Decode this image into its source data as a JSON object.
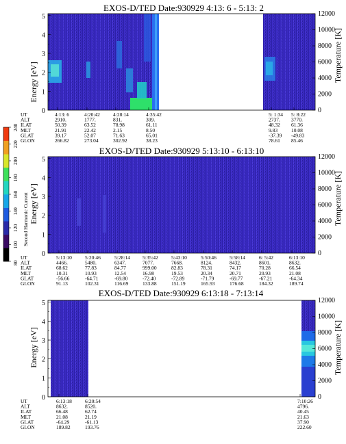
{
  "figure": {
    "colorbar": {
      "label": "Second Harmonic Current",
      "ticks": [
        "80",
        "100",
        "120",
        "140",
        "160",
        "180",
        "200",
        "220",
        "240"
      ],
      "colors": [
        "#000000",
        "#3a0a63",
        "#2a2aa8",
        "#1e5be0",
        "#17a6e8",
        "#22d6c0",
        "#3ee05a",
        "#d8e62a",
        "#f0a020",
        "#f03a10"
      ]
    },
    "row_labels": [
      "UT",
      "ALT",
      "ILAT",
      "MLT",
      "GLAT",
      "GLON"
    ],
    "panels": [
      {
        "title": "EXOS-D/TED   Date:930929  4:13: 6 - 5:13: 2",
        "left_axis": {
          "label": "Energy [eV]",
          "ticks": [
            "0",
            "1",
            "2",
            "3",
            "4",
            "5"
          ]
        },
        "right_axis": {
          "label": "Temperature [K]",
          "ticks": [
            "0",
            "2000",
            "4000",
            "6000",
            "8000",
            "10000",
            "12000"
          ]
        },
        "table": [
          [
            "4:13: 6",
            "2910.",
            "50.39",
            "21.91",
            "39.17",
            "266.82"
          ],
          [
            "4:20:42",
            "1777.",
            "63.52",
            "22.42",
            "52.07",
            "273.04"
          ],
          [
            "4:28:14",
            "831.",
            "78.98",
            "2.15",
            "71.63",
            "302.92"
          ],
          [
            "4:35:42",
            "309.",
            "61.11",
            "8.50",
            "65.01",
            "38.23"
          ],
          [
            "5: 1:34",
            "2737.",
            "48.32",
            "9.83",
            "-37.39",
            "78.61"
          ],
          [
            "5: 8:22",
            "3770.",
            "61.36",
            "10.08",
            "-49.83",
            "85.46"
          ]
        ]
      },
      {
        "title": "EXOS-D/TED   Date:930929  5:13:10 - 6:13:10",
        "left_axis": {
          "label": "Energy [eV]",
          "ticks": [
            "0",
            "1",
            "2",
            "3",
            "4",
            "5"
          ]
        },
        "right_axis": {
          "label": "Temperature [K]",
          "ticks": [
            "0",
            "2000",
            "4000",
            "6000",
            "8000",
            "10000",
            "12000"
          ]
        },
        "table": [
          [
            "5:13:10",
            "4466.",
            "68.62",
            "10.31",
            "-56.66",
            "91.13"
          ],
          [
            "5:20:46",
            "5480.",
            "77.83",
            "10.93",
            "-64.71",
            "102.31"
          ],
          [
            "5:28:14",
            "6347.",
            "84.77",
            "12.54",
            "-69.80",
            "116.69"
          ],
          [
            "5:35:42",
            "7077.",
            "999.00",
            "16.98",
            "-72.40",
            "133.88"
          ],
          [
            "5:43:10",
            "7668.",
            "82.83",
            "19.53",
            "-72.89",
            "151.19"
          ],
          [
            "5:50:46",
            "8124.",
            "78.31",
            "20.34",
            "-71.79",
            "165.93"
          ],
          [
            "5:58:14",
            "8432.",
            "74.17",
            "20.71",
            "-69.77",
            "176.68"
          ],
          [
            "6: 5:42",
            "8601.",
            "70.28",
            "20.93",
            "-67.21",
            "184.32"
          ],
          [
            "6:13:10",
            "8632.",
            "66.54",
            "21.08",
            "-64.34",
            "189.74"
          ]
        ]
      },
      {
        "title": "EXOS-D/TED   Date:930929  6:13:18 - 7:13:14",
        "left_axis": {
          "label": "Energy [eV]",
          "ticks": [
            "0",
            "1",
            "2",
            "3",
            "4",
            "5"
          ]
        },
        "right_axis": {
          "label": "Temperature [K]",
          "ticks": [
            "0",
            "2000",
            "4000",
            "6000",
            "8000",
            "10000",
            "12000"
          ]
        },
        "table": [
          [
            "6:13:18",
            "8632.",
            "66.48",
            "21.08",
            "-64.29",
            "189.82"
          ],
          [
            "6:20:54",
            "8520.",
            "62.74",
            "21.19",
            "-61.13",
            "193.76"
          ],
          [
            "7:10:26",
            "4796.",
            "40.45",
            "21.63",
            "37.90",
            "222.60"
          ]
        ]
      }
    ]
  },
  "chart_data": [
    {
      "type": "heatmap",
      "title": "EXOS-D/TED   Date:930929  4:13: 6 - 5:13: 2",
      "xlabel": "UT",
      "ylabel": "Energy [eV]",
      "y2label": "Temperature [K]",
      "ylim": [
        0,
        5.1
      ],
      "y2lim": [
        0,
        12000
      ],
      "x_ticks": [
        "4:13: 6",
        "4:20:42",
        "4:28:14",
        "4:35:42",
        "5: 1:34",
        "5: 8:22"
      ],
      "color_scale": {
        "label": "Second Harmonic Current",
        "range": [
          80,
          240
        ]
      },
      "coverage": [
        {
          "start": "4:13: 6",
          "end": "4:36:30"
        },
        {
          "start": "4:59:40",
          "end": "5:13: 2"
        }
      ],
      "features": [
        {
          "time_range": [
            "4:13: 6",
            "4:16:30"
          ],
          "energy_range": [
            1.4,
            2.5
          ],
          "level": 165
        },
        {
          "time_range": [
            "4:20:00",
            "4:21:10"
          ],
          "energy_range": [
            1.5,
            2.3
          ],
          "level": 155
        },
        {
          "time_range": [
            "4:31:00",
            "4:33:50"
          ],
          "energy_range": [
            0,
            0.5
          ],
          "level": 185
        },
        {
          "time_range": [
            "4:33:50",
            "4:36:30"
          ],
          "energy_range": [
            0,
            5.1
          ],
          "level": 160
        },
        {
          "time_range": [
            "5: 0:00",
            "5: 2:40"
          ],
          "energy_range": [
            1.3,
            2.8
          ],
          "level": 145
        }
      ]
    },
    {
      "type": "heatmap",
      "title": "EXOS-D/TED   Date:930929  5:13:10 - 6:13:10",
      "xlabel": "UT",
      "ylabel": "Energy [eV]",
      "y2label": "Temperature [K]",
      "ylim": [
        0,
        5.1
      ],
      "y2lim": [
        0,
        12000
      ],
      "x_ticks": [
        "5:13:10",
        "5:20:46",
        "5:28:14",
        "5:35:42",
        "5:43:10",
        "5:50:46",
        "5:58:14",
        "6: 5:42",
        "6:13:10"
      ],
      "color_scale": {
        "label": "Second Harmonic Current",
        "range": [
          80,
          240
        ]
      },
      "coverage": [
        {
          "start": "5:13:10",
          "end": "6:13:10"
        }
      ],
      "features": [
        {
          "time_range": [
            "5:13:10",
            "6:13:10"
          ],
          "energy_range": [
            0,
            5.1
          ],
          "level": 112
        }
      ]
    },
    {
      "type": "heatmap",
      "title": "EXOS-D/TED   Date:930929  6:13:18 - 7:13:14",
      "xlabel": "UT",
      "ylabel": "Energy [eV]",
      "y2label": "Temperature [K]",
      "ylim": [
        0,
        5.1
      ],
      "y2lim": [
        0,
        12000
      ],
      "x_ticks": [
        "6:13:18",
        "6:20:54",
        "7:10:26"
      ],
      "color_scale": {
        "label": "Second Harmonic Current",
        "range": [
          80,
          240
        ]
      },
      "coverage": [
        {
          "start": "6:13:18",
          "end": "6:21:40"
        },
        {
          "start": "7:10:00",
          "end": "7:13:14"
        }
      ],
      "features": [
        {
          "time_range": [
            "7:10:00",
            "7:13:14"
          ],
          "energy_range": [
            1.6,
            3.2
          ],
          "level": 165
        },
        {
          "time_range": [
            "7:10:00",
            "7:13:14"
          ],
          "energy_range": [
            0.4,
            1.6
          ],
          "level": 130
        }
      ]
    }
  ]
}
